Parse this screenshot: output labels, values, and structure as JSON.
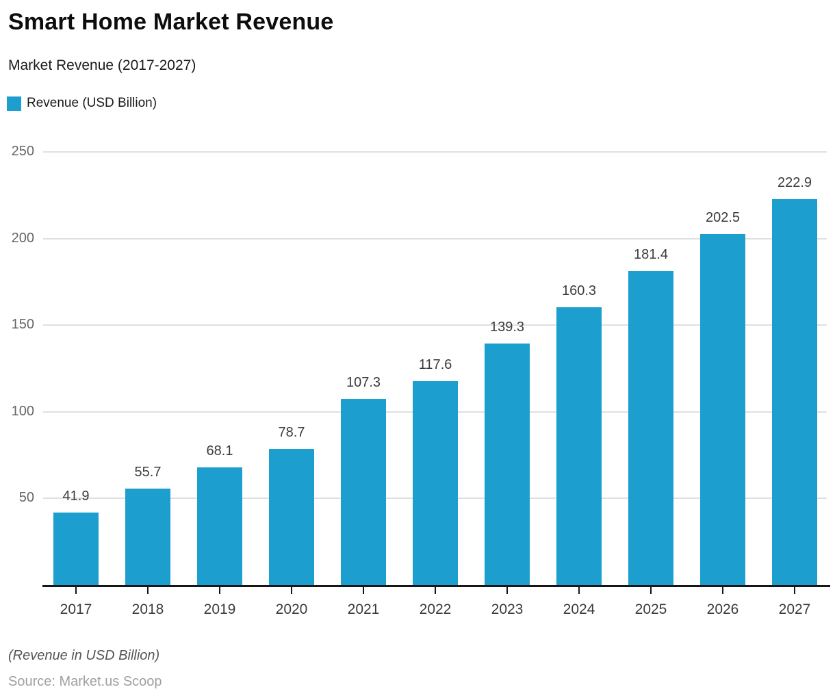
{
  "header": {
    "title": "Smart Home Market Revenue",
    "subtitle": "Market Revenue (2017-2027)"
  },
  "legend": {
    "label": "Revenue (USD Billion)",
    "swatch_color": "#1C9FCE"
  },
  "chart_data": {
    "type": "bar",
    "title": "Smart Home Market Revenue",
    "subtitle": "Market Revenue (2017-2027)",
    "categories": [
      "2017",
      "2018",
      "2019",
      "2020",
      "2021",
      "2022",
      "2023",
      "2024",
      "2025",
      "2026",
      "2027"
    ],
    "series": [
      {
        "name": "Revenue (USD Billion)",
        "values": [
          41.9,
          55.7,
          68.1,
          78.7,
          107.3,
          117.6,
          139.3,
          160.3,
          181.4,
          202.5,
          222.9
        ]
      }
    ],
    "xlabel": "",
    "ylabel": "",
    "ylim": [
      0,
      250
    ],
    "yticks": [
      50,
      100,
      150,
      200,
      250
    ],
    "bar_color": "#1C9FCE",
    "grid": "horizontal-only",
    "gridline_color": "#E0E0E0",
    "axis_color": "#161616",
    "value_labels": "above-bars",
    "legend_position": "top-left"
  },
  "footer": {
    "note": "(Revenue in USD Billion)",
    "source": "Source: Market.us Scoop"
  }
}
